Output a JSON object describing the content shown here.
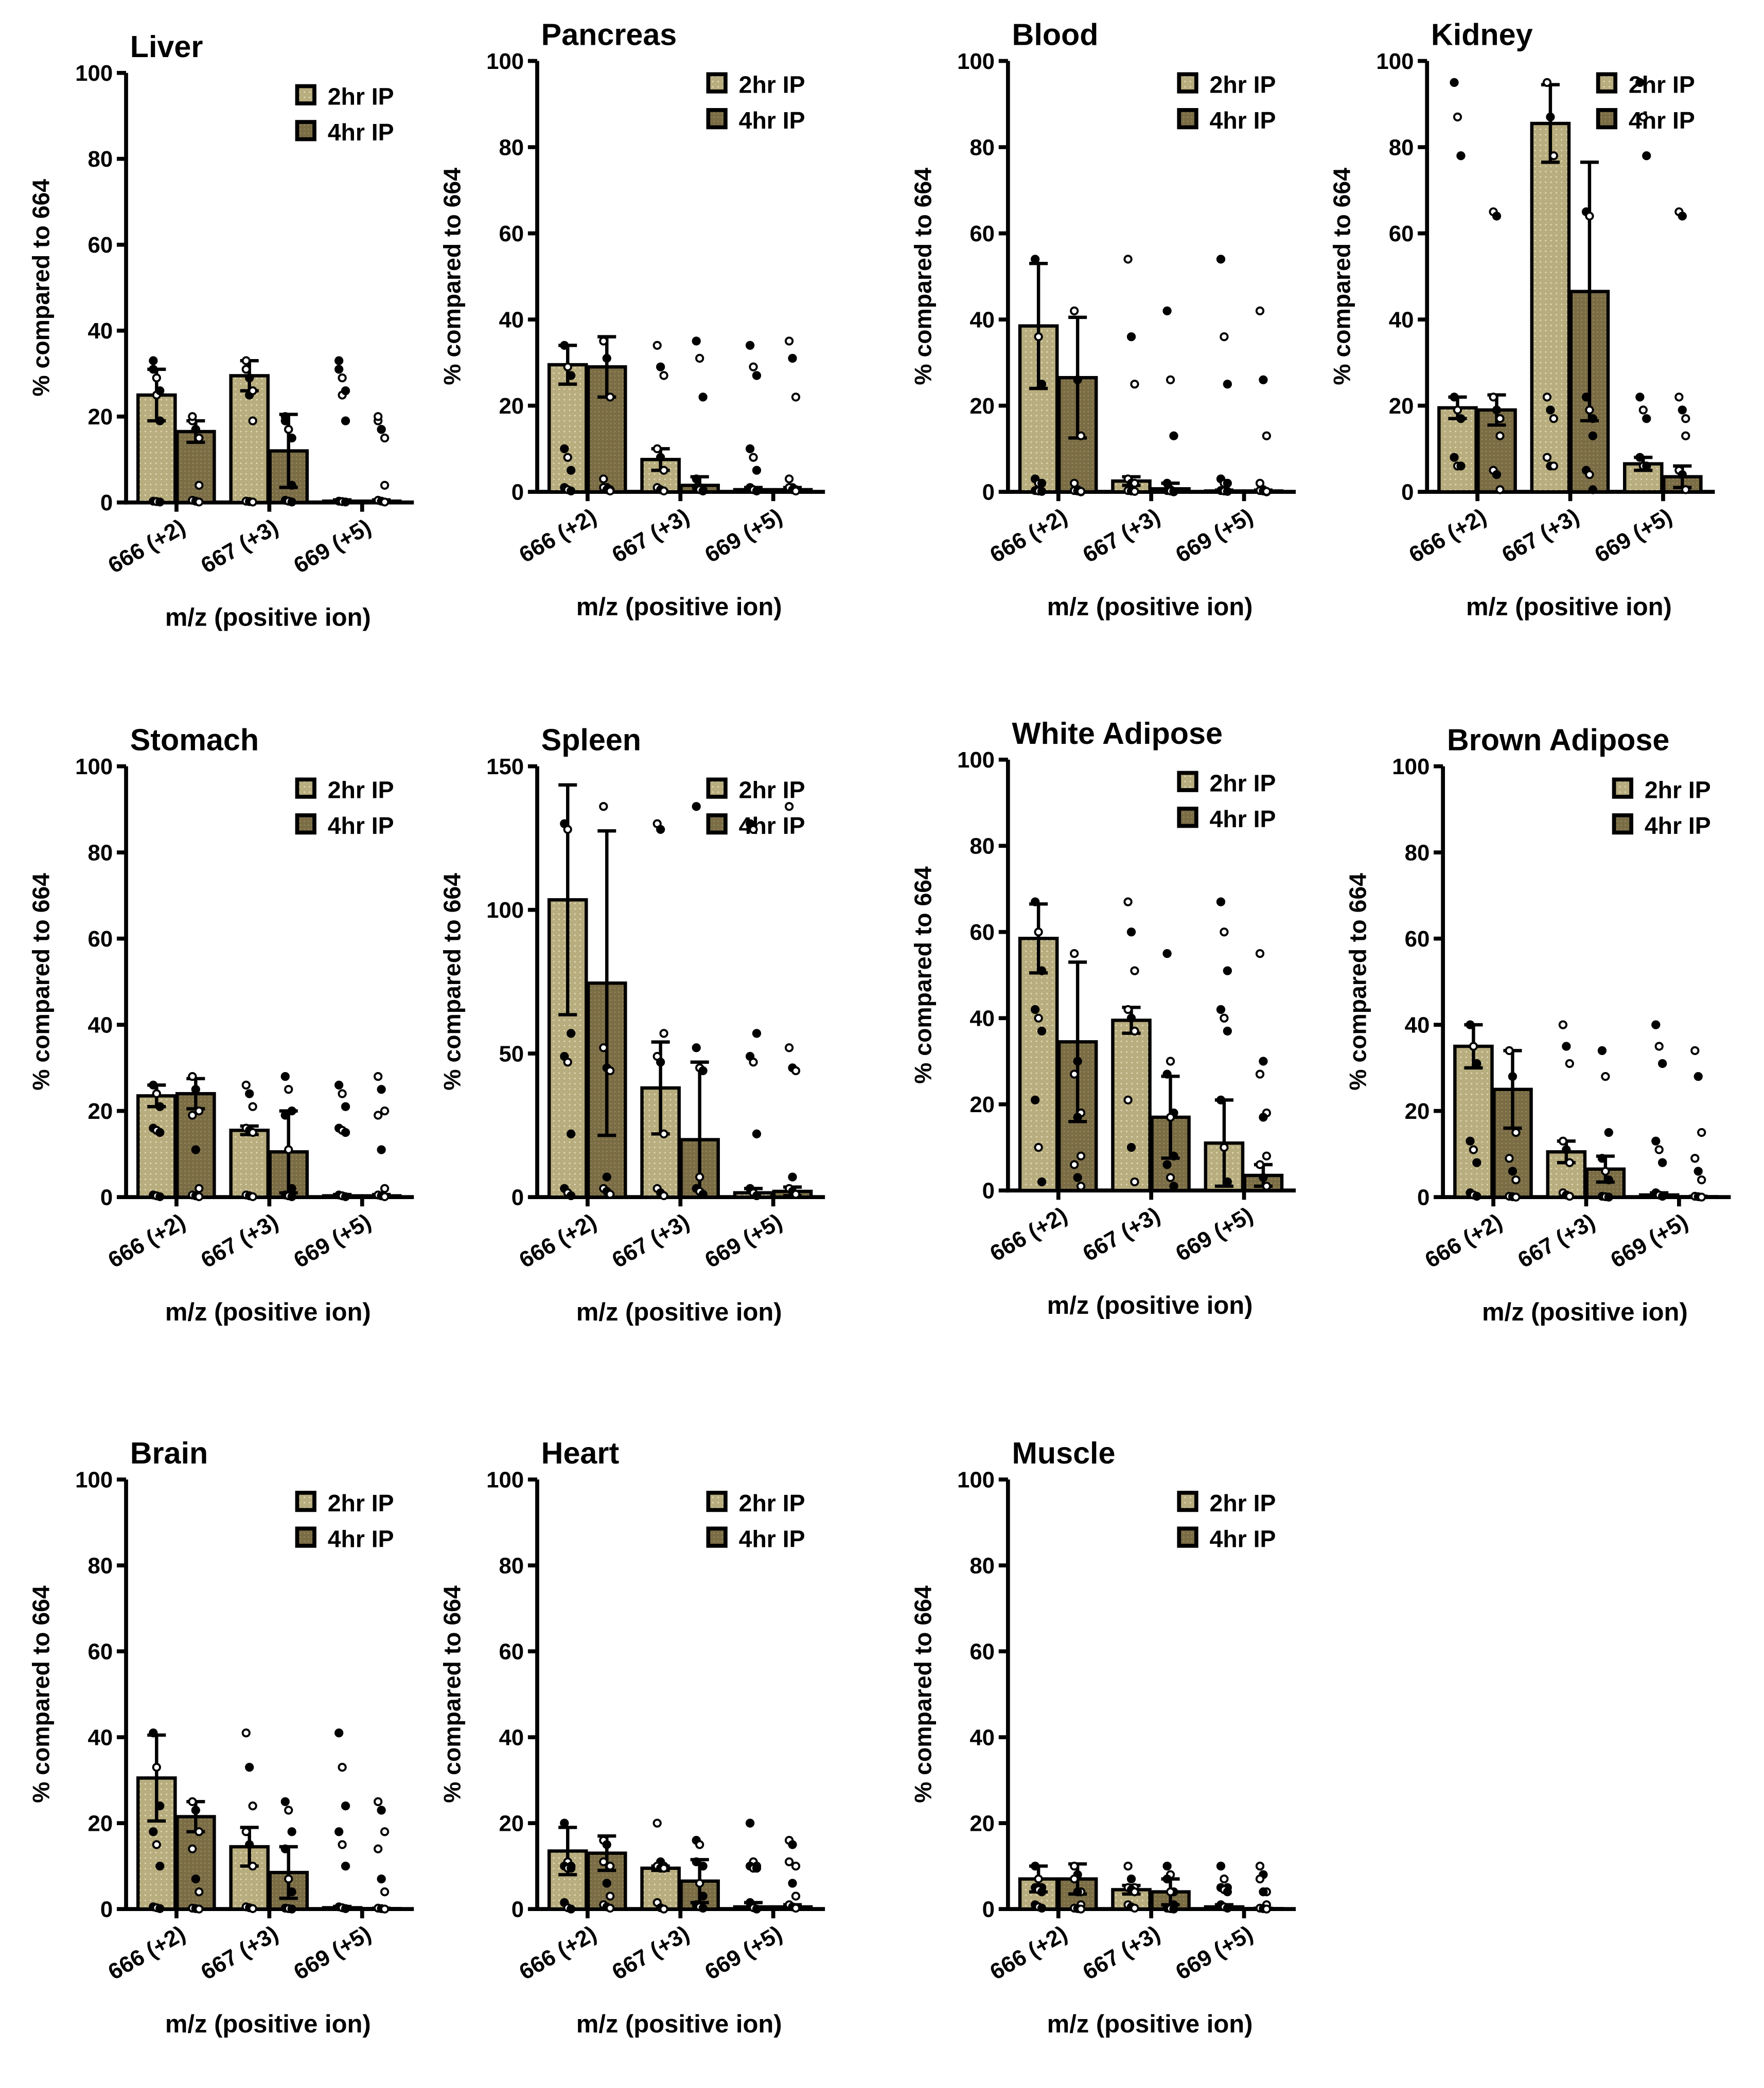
{
  "colors": {
    "light": "#b8ad7e",
    "dark": "#7a6d46",
    "stroke": "#000000"
  },
  "legend": [
    "2hr IP",
    "4hr IP"
  ],
  "chart_data": [
    {
      "type": "bar",
      "title": "Liver",
      "xlabel": "m/z (positive ion)",
      "ylabel": "% compared to 664",
      "ylim": [
        0,
        100
      ],
      "yticks": [
        "0",
        "20",
        "40",
        "60",
        "80",
        "100"
      ],
      "categories": [
        "666 (+2)",
        "667 (+3)",
        "669 (+5)"
      ],
      "series": [
        {
          "name": "2hr IP",
          "values": [
            25,
            29.5,
            0.3
          ],
          "sd": [
            6,
            3.5,
            0.3
          ],
          "points": [
            [
              31,
              25,
              19
            ],
            [
              33,
              29,
              26
            ],
            [
              0.3,
              0.2,
              0.1
            ]
          ]
        },
        {
          "name": "4hr IP",
          "values": [
            16.5,
            12,
            0.3
          ],
          "sd": [
            2.5,
            8.5,
            0.3
          ],
          "points": [
            [
              19,
              17,
              15
            ],
            [
              20,
              17,
              4
            ],
            [
              0.5,
              0.3,
              0.1
            ]
          ]
        }
      ]
    },
    {
      "type": "bar",
      "title": "Pancreas",
      "xlabel": "m/z (positive ion)",
      "ylabel": "% compared to 664",
      "ylim": [
        0,
        100
      ],
      "yticks": [
        "0",
        "20",
        "40",
        "60",
        "80",
        "100"
      ],
      "categories": [
        "666 (+2)",
        "667 (+3)",
        "669 (+5)"
      ],
      "series": [
        {
          "name": "2hr IP",
          "values": [
            29.5,
            7.5,
            0.5
          ],
          "sd": [
            4.5,
            2.5,
            0.5
          ],
          "points": [
            [
              34,
              29,
              27
            ],
            [
              10,
              8,
              5
            ],
            [
              1,
              0.5,
              0.2
            ]
          ]
        },
        {
          "name": "4hr IP",
          "values": [
            29,
            1.5,
            0.5
          ],
          "sd": [
            7,
            2,
            0.5
          ],
          "points": [
            [
              35,
              31,
              22
            ],
            [
              3,
              1,
              0.5
            ],
            [
              1,
              0.5,
              0.2
            ]
          ]
        }
      ]
    },
    {
      "type": "bar",
      "title": "Blood",
      "xlabel": "m/z (positive ion)",
      "ylabel": "% compared to 664",
      "ylim": [
        0,
        100
      ],
      "yticks": [
        "0",
        "20",
        "40",
        "60",
        "80",
        "100"
      ],
      "categories": [
        "666 (+2)",
        "667 (+3)",
        "669 (+5)"
      ],
      "series": [
        {
          "name": "2hr IP",
          "values": [
            38.5,
            2.5,
            0.2
          ],
          "sd": [
            14.5,
            1,
            0.2
          ],
          "points": [
            [
              54,
              36,
              25
            ],
            [
              3,
              2,
              2
            ],
            [
              0.3,
              0.2,
              0.1
            ]
          ]
        },
        {
          "name": "4hr IP",
          "values": [
            26.5,
            0.7,
            0.2
          ],
          "sd": [
            14,
            1.3,
            0.2
          ],
          "points": [
            [
              42,
              26,
              13
            ],
            [
              2,
              0.5,
              0
            ],
            [
              0.3,
              0.2,
              0.1
            ]
          ]
        }
      ]
    },
    {
      "type": "bar",
      "title": "Kidney",
      "xlabel": "m/z (positive ion)",
      "ylabel": "% compared to 664",
      "ylim": [
        0,
        100
      ],
      "yticks": [
        "0",
        "20",
        "40",
        "60",
        "80",
        "100"
      ],
      "categories": [
        "666 (+2)",
        "667 (+3)",
        "669 (+5)"
      ],
      "series": [
        {
          "name": "2hr IP",
          "values": [
            19.5,
            85.5,
            6.5
          ],
          "sd": [
            2.5,
            9,
            1.5
          ],
          "points": [
            [
              22,
              19,
              17
            ],
            [
              95,
              87,
              78
            ],
            [
              8,
              6,
              6
            ]
          ]
        },
        {
          "name": "4hr IP",
          "values": [
            19,
            46.5,
            3.5
          ],
          "sd": [
            3.5,
            30,
            2.5
          ],
          "points": [
            [
              22,
              19,
              17
            ],
            [
              65,
              64,
              13
            ],
            [
              5,
              4,
              0.5
            ]
          ]
        }
      ]
    },
    {
      "type": "bar",
      "title": "Stomach",
      "xlabel": "m/z (positive ion)",
      "ylabel": "% compared to 664",
      "ylim": [
        0,
        100
      ],
      "yticks": [
        "0",
        "20",
        "40",
        "60",
        "80",
        "100"
      ],
      "categories": [
        "666 (+2)",
        "667 (+3)",
        "669 (+5)"
      ],
      "series": [
        {
          "name": "2hr IP",
          "values": [
            23.5,
            15.5,
            0.3
          ],
          "sd": [
            2.5,
            1,
            0.3
          ],
          "points": [
            [
              26,
              24,
              21
            ],
            [
              16,
              15.5,
              15
            ],
            [
              0.5,
              0.3,
              0.1
            ]
          ]
        },
        {
          "name": "4hr IP",
          "values": [
            24,
            10.5,
            0.3
          ],
          "sd": [
            3.5,
            9.5,
            0.3
          ],
          "points": [
            [
              28,
              25,
              20
            ],
            [
              19,
              11,
              2
            ],
            [
              0.5,
              0.3,
              0.1
            ]
          ]
        }
      ]
    },
    {
      "type": "bar",
      "title": "Spleen",
      "xlabel": "m/z (positive ion)",
      "ylabel": "% compared to 664",
      "ylim": [
        0,
        150
      ],
      "yticks": [
        "0",
        "50",
        "100",
        "150"
      ],
      "categories": [
        "666 (+2)",
        "667 (+3)",
        "669 (+5)"
      ],
      "series": [
        {
          "name": "2hr IP",
          "values": [
            103.5,
            38,
            1.5
          ],
          "sd": [
            40,
            16,
            1.5
          ],
          "points": [
            [
              130,
              128,
              57
            ],
            [
              49,
              47,
              22
            ],
            [
              3,
              1.5,
              0.5
            ]
          ]
        },
        {
          "name": "4hr IP",
          "values": [
            74.5,
            20,
            2
          ],
          "sd": [
            53,
            27,
            1.5
          ],
          "points": [
            [
              136,
              45,
              44
            ],
            [
              52,
              7,
              1
            ],
            [
              3,
              2,
              1
            ]
          ]
        }
      ]
    },
    {
      "type": "bar",
      "title": "White Adipose",
      "xlabel": "m/z (positive ion)",
      "ylabel": "% compared to 664",
      "ylim": [
        0,
        100
      ],
      "yticks": [
        "0",
        "20",
        "40",
        "60",
        "80",
        "100"
      ],
      "categories": [
        "666 (+2)",
        "667 (+3)",
        "669 (+5)"
      ],
      "series": [
        {
          "name": "2hr IP",
          "values": [
            58.5,
            39.5,
            11
          ],
          "sd": [
            8,
            3,
            10
          ],
          "points": [
            [
              67,
              60,
              51
            ],
            [
              42,
              40,
              37
            ],
            [
              21,
              10,
              2
            ]
          ]
        },
        {
          "name": "4hr IP",
          "values": [
            34.5,
            17,
            3.5
          ],
          "sd": [
            18.5,
            9.5,
            2.5
          ],
          "points": [
            [
              55,
              30,
              18
            ],
            [
              27,
              17,
              8
            ],
            [
              6,
              3,
              1
            ]
          ]
        }
      ]
    },
    {
      "type": "bar",
      "title": "Brown  Adipose",
      "xlabel": "m/z (positive ion)",
      "ylabel": "% compared to 664",
      "ylim": [
        0,
        100
      ],
      "yticks": [
        "0",
        "20",
        "40",
        "60",
        "80",
        "100"
      ],
      "categories": [
        "666 (+2)",
        "667 (+3)",
        "669 (+5)"
      ],
      "series": [
        {
          "name": "2hr IP",
          "values": [
            35,
            10.5,
            0.5
          ],
          "sd": [
            5,
            2.5,
            0.5
          ],
          "points": [
            [
              40,
              35,
              31
            ],
            [
              13,
              11,
              8
            ],
            [
              1,
              0.5,
              0.2
            ]
          ]
        },
        {
          "name": "4hr IP",
          "values": [
            25,
            6.5,
            0.1
          ],
          "sd": [
            9,
            3,
            0.1
          ],
          "points": [
            [
              34,
              28,
              15
            ],
            [
              9,
              6,
              4
            ],
            [
              0.2,
              0.1,
              0
            ]
          ]
        }
      ]
    },
    {
      "type": "bar",
      "title": "Brain",
      "xlabel": "m/z (positive ion)",
      "ylabel": "% compared to 664",
      "ylim": [
        0,
        100
      ],
      "yticks": [
        "0",
        "20",
        "40",
        "60",
        "80",
        "100"
      ],
      "categories": [
        "666 (+2)",
        "667 (+3)",
        "669 (+5)"
      ],
      "series": [
        {
          "name": "2hr IP",
          "values": [
            30.5,
            14.5,
            0.3
          ],
          "sd": [
            10,
            4.5,
            0.3
          ],
          "points": [
            [
              41,
              33,
              24
            ],
            [
              18,
              15,
              10
            ],
            [
              0.5,
              0.3,
              0.1
            ]
          ]
        },
        {
          "name": "4hr IP",
          "values": [
            21.5,
            8.5,
            0.1
          ],
          "sd": [
            3.5,
            6,
            0.1
          ],
          "points": [
            [
              25,
              23,
              18
            ],
            [
              14,
              7,
              4
            ],
            [
              0.2,
              0.1,
              0
            ]
          ]
        }
      ]
    },
    {
      "type": "bar",
      "title": "Heart",
      "xlabel": "m/z (positive ion)",
      "ylabel": "% compared to 664",
      "ylim": [
        0,
        100
      ],
      "yticks": [
        "0",
        "20",
        "40",
        "60",
        "80",
        "100"
      ],
      "categories": [
        "666 (+2)",
        "667 (+3)",
        "669 (+5)"
      ],
      "series": [
        {
          "name": "2hr IP",
          "values": [
            13.5,
            9.5,
            0.5
          ],
          "sd": [
            5.5,
            0.5,
            1
          ],
          "points": [
            [
              20,
              11,
              10
            ],
            [
              10,
              9.5,
              9.5
            ],
            [
              1.5,
              0.3,
              0
            ]
          ]
        },
        {
          "name": "4hr IP",
          "values": [
            13,
            6.5,
            0.5
          ],
          "sd": [
            4,
            5,
            0.5
          ],
          "points": [
            [
              16,
              15,
              10
            ],
            [
              11,
              6,
              3
            ],
            [
              1,
              0.5,
              0.2
            ]
          ]
        }
      ]
    },
    {
      "type": "bar",
      "title": "Muscle",
      "xlabel": "m/z (positive ion)",
      "ylabel": "% compared to 664",
      "ylim": [
        0,
        100
      ],
      "yticks": [
        "0",
        "20",
        "40",
        "60",
        "80",
        "100"
      ],
      "categories": [
        "666 (+2)",
        "667 (+3)",
        "669 (+5)"
      ],
      "series": [
        {
          "name": "2hr IP",
          "values": [
            7,
            4.5,
            0.5
          ],
          "sd": [
            3,
            1,
            0.5
          ],
          "points": [
            [
              10,
              7,
              5
            ],
            [
              5,
              4.5,
              4
            ],
            [
              1,
              0.5,
              0.2
            ]
          ]
        },
        {
          "name": "4hr IP",
          "values": [
            7,
            4,
            0.1
          ],
          "sd": [
            3.5,
            3,
            0.1
          ],
          "points": [
            [
              10,
              8,
              4
            ],
            [
              7,
              4,
              1
            ],
            [
              0.2,
              0.1,
              0
            ]
          ]
        }
      ]
    }
  ]
}
